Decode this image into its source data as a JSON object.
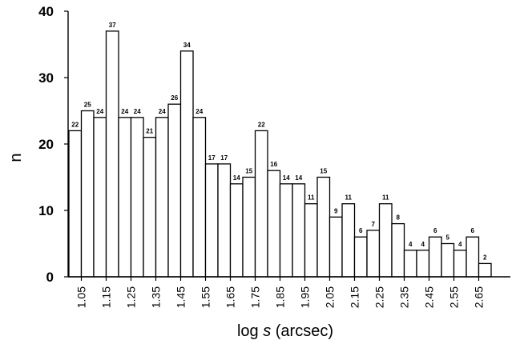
{
  "chart_data": {
    "type": "bar",
    "title": "",
    "xlabel": "log s (arcsec)",
    "xlabel_parts": [
      "log ",
      "s",
      " (arcsec)"
    ],
    "ylabel": "n",
    "ylim": [
      0,
      40
    ],
    "yticks": [
      "0",
      "10",
      "20",
      "30",
      "40"
    ],
    "bin_start": 1.0,
    "bin_width": 0.05,
    "xticks": [
      "1.05",
      "1.15",
      "1.25",
      "1.35",
      "1.45",
      "1.55",
      "1.65",
      "1.75",
      "1.85",
      "1.95",
      "2.05",
      "2.15",
      "2.25",
      "2.35",
      "2.45",
      "2.55",
      "2.65"
    ],
    "values": [
      22,
      25,
      24,
      37,
      24,
      24,
      21,
      24,
      26,
      34,
      24,
      17,
      17,
      14,
      15,
      22,
      16,
      14,
      14,
      11,
      15,
      9,
      11,
      6,
      7,
      11,
      8,
      4,
      4,
      6,
      5,
      4,
      6,
      2
    ],
    "data_labels": [
      "22",
      "25",
      "24",
      "37",
      "24",
      "24",
      "21",
      "24",
      "26",
      "34",
      "24",
      "17",
      "17",
      "14",
      "15",
      "22",
      "16",
      "14",
      "14",
      "11",
      "15",
      "9",
      "11",
      "6",
      "7",
      "11",
      "8",
      "4",
      "4",
      "6",
      "5",
      "4",
      "6",
      "2"
    ],
    "bar_fill": "#ffffff",
    "bar_stroke": "#000000",
    "grid": false,
    "legend": "none"
  }
}
